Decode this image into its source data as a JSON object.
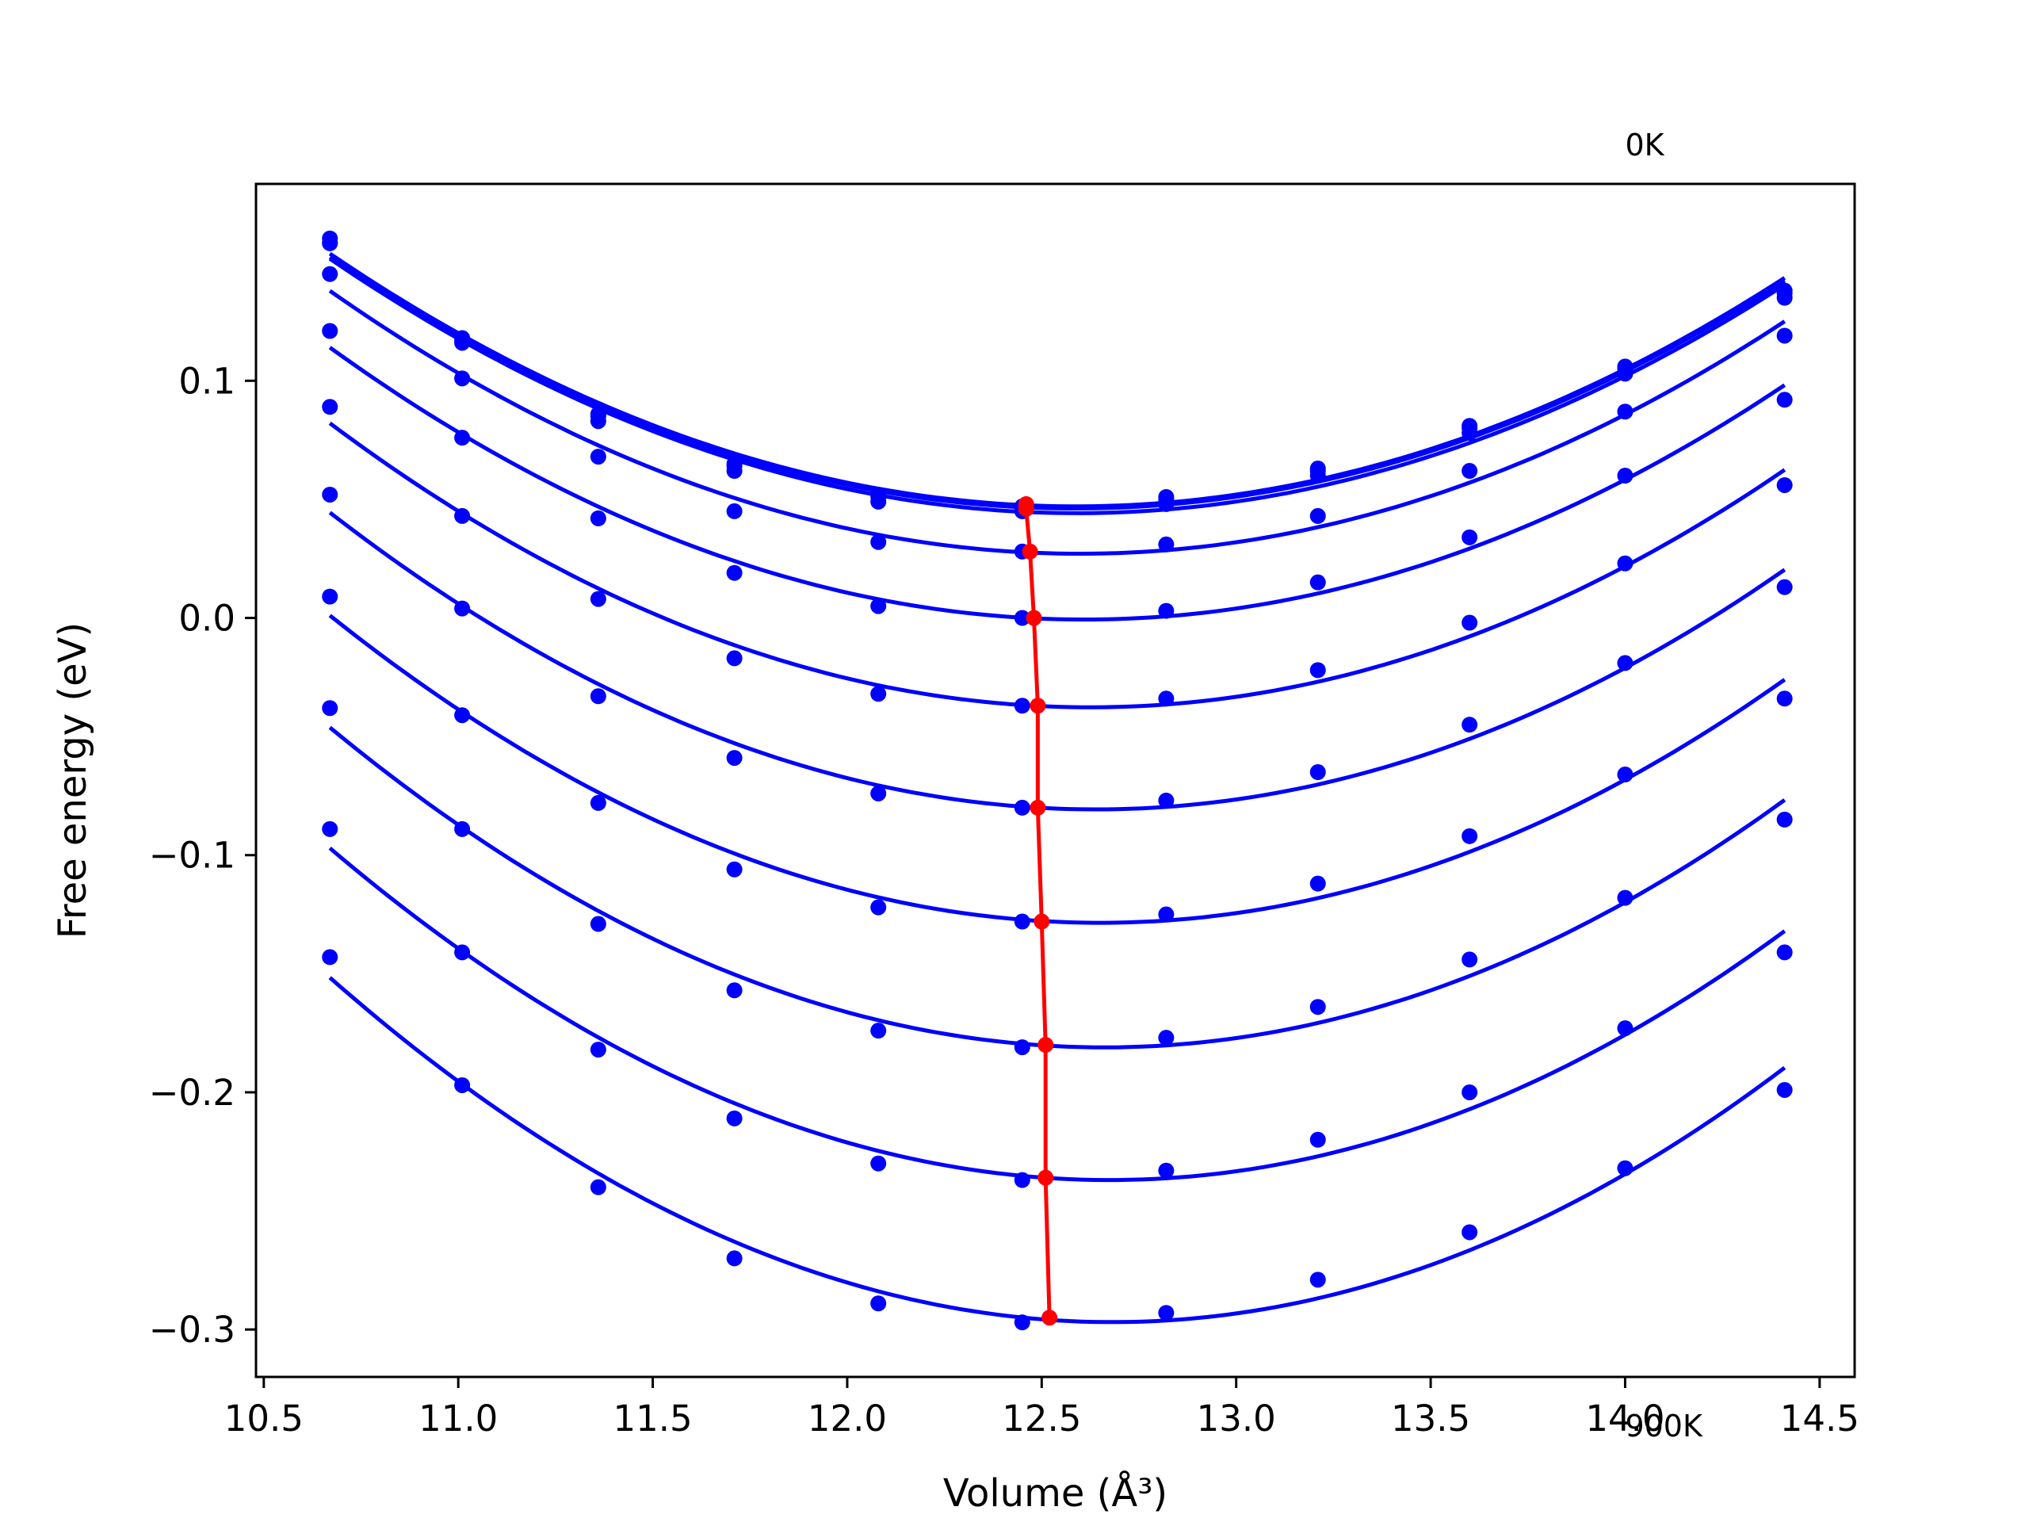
{
  "chart_data": {
    "type": "line",
    "title": "",
    "xlabel": "Volume (Å³)",
    "ylabel": "Free energy (eV)",
    "xlim": [
      10.48,
      14.59
    ],
    "ylim": [
      -0.32,
      0.183
    ],
    "xticks": [
      10.5,
      11.0,
      11.5,
      12.0,
      12.5,
      13.0,
      13.5,
      14.0,
      14.5
    ],
    "xtick_labels": [
      "10.5",
      "11.0",
      "11.5",
      "12.0",
      "12.5",
      "13.0",
      "13.5",
      "14.0",
      "14.5"
    ],
    "yticks": [
      0.1,
      0.0,
      -0.1,
      -0.2,
      -0.3
    ],
    "ytick_labels": [
      "0.1",
      "0.0",
      "−0.1",
      "−0.2",
      "−0.3"
    ],
    "grid": false,
    "legend": false,
    "annotations": [
      {
        "text": "0K",
        "x": 14.0,
        "y": 0.195
      },
      {
        "text": "900K",
        "x": 14.0,
        "y": -0.345
      }
    ],
    "x": [
      10.67,
      11.01,
      11.36,
      11.71,
      12.08,
      12.45,
      12.82,
      13.21,
      13.6,
      14.0,
      14.41
    ],
    "series": [
      {
        "color": "#0000ff",
        "values": [
          0.16,
          0.118,
          0.086,
          0.065,
          0.052,
          0.047,
          0.051,
          0.063,
          0.081,
          0.106,
          0.138
        ]
      },
      {
        "color": "#0000ff",
        "values": [
          0.158,
          0.117,
          0.085,
          0.064,
          0.051,
          0.046,
          0.05,
          0.062,
          0.08,
          0.105,
          0.137
        ]
      },
      {
        "color": "#0000ff",
        "values": [
          0.158,
          0.116,
          0.083,
          0.062,
          0.049,
          0.045,
          0.048,
          0.06,
          0.078,
          0.103,
          0.135
        ]
      },
      {
        "color": "#0000ff",
        "values": [
          0.145,
          0.101,
          0.068,
          0.045,
          0.032,
          0.028,
          0.031,
          0.043,
          0.062,
          0.087,
          0.119
        ]
      },
      {
        "color": "#0000ff",
        "values": [
          0.121,
          0.076,
          0.042,
          0.019,
          0.005,
          0.0,
          0.003,
          0.015,
          0.034,
          0.06,
          0.092
        ]
      },
      {
        "color": "#0000ff",
        "values": [
          0.089,
          0.043,
          0.008,
          -0.017,
          -0.032,
          -0.037,
          -0.034,
          -0.022,
          -0.002,
          0.023,
          0.056
        ]
      },
      {
        "color": "#0000ff",
        "values": [
          0.052,
          0.004,
          -0.033,
          -0.059,
          -0.074,
          -0.08,
          -0.077,
          -0.065,
          -0.045,
          -0.019,
          0.013
        ]
      },
      {
        "color": "#0000ff",
        "values": [
          0.009,
          -0.041,
          -0.078,
          -0.106,
          -0.122,
          -0.128,
          -0.125,
          -0.112,
          -0.092,
          -0.066,
          -0.034
        ]
      },
      {
        "color": "#0000ff",
        "values": [
          -0.038,
          -0.089,
          -0.129,
          -0.157,
          -0.174,
          -0.181,
          -0.177,
          -0.164,
          -0.144,
          -0.118,
          -0.085
        ]
      },
      {
        "color": "#0000ff",
        "values": [
          -0.089,
          -0.141,
          -0.182,
          -0.211,
          -0.23,
          -0.237,
          -0.233,
          -0.22,
          -0.2,
          -0.173,
          -0.141
        ]
      },
      {
        "color": "#0000ff",
        "values": [
          -0.143,
          -0.197,
          -0.24,
          -0.27,
          -0.289,
          -0.297,
          -0.293,
          -0.279,
          -0.259,
          -0.232,
          -0.199
        ]
      }
    ],
    "minimum_line": {
      "color": "#ff0000",
      "x": [
        12.46,
        12.46,
        12.47,
        12.48,
        12.49,
        12.49,
        12.5,
        12.51,
        12.51,
        12.52
      ],
      "y": [
        0.048,
        0.046,
        0.028,
        0.0,
        -0.037,
        -0.08,
        -0.128,
        -0.18,
        -0.236,
        -0.295
      ]
    }
  }
}
